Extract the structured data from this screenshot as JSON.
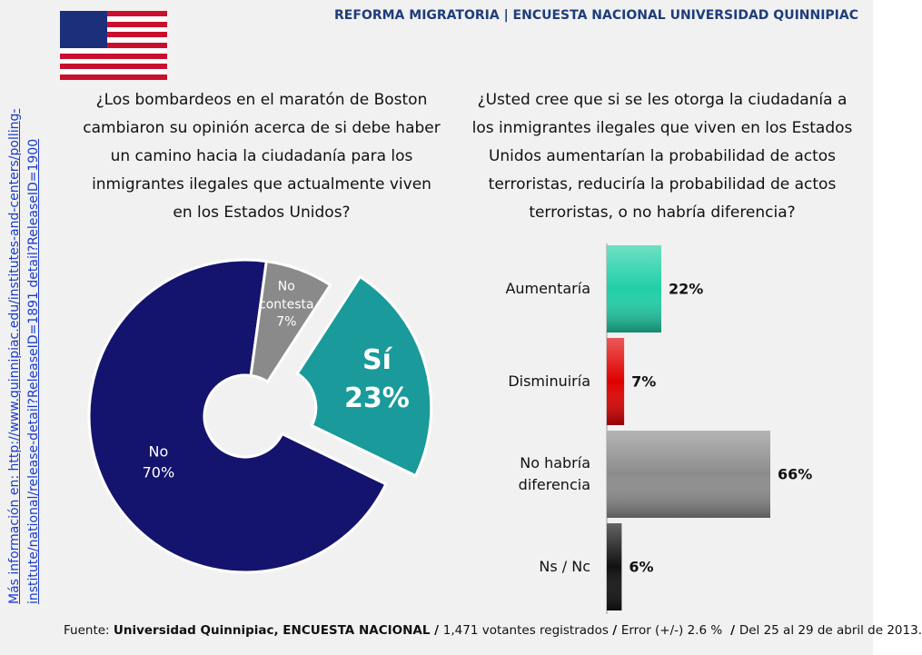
{
  "header": {
    "title": "REFORMA MIGRATORIA | ENCUESTA NACIONAL UNIVERSIDAD QUINNIPIAC"
  },
  "side_note": {
    "lines": [
      "Más información en: http://www.quinnipiac.edu/institutes-and-centers/polling-",
      "institute/national/release-detail?ReleaseID=1891 detail?ReleaseID=1900"
    ]
  },
  "chart_data": [
    {
      "type": "pie",
      "title": "¿Los bombardeos en el maratón de Boston cambiaron su opinión acerca de si debe haber un camino hacia la ciudadanía para los inmigrantes ilegales que actualmente viven en los Estados Unidos?",
      "categories": [
        "Sí",
        "No",
        "No contesta"
      ],
      "values": [
        23,
        70,
        7
      ],
      "value_labels": [
        "23%",
        "70%",
        "7%"
      ],
      "colors": [
        "#1a9a9a",
        "#14146e",
        "#8a8a8a"
      ],
      "exploded": [
        true,
        false,
        false
      ]
    },
    {
      "type": "hbar",
      "title": "¿Usted cree que si se les otorga la ciudadanía a los inmigrantes ilegales que viven en los Estados Unidos aumentarían la probabilidad de actos terroristas, reduciría la probabilidad de actos terroristas, o no habría diferencia?",
      "categories": [
        "Aumentaría",
        "Disminuiría",
        "No habría diferencia",
        "Ns / Nc"
      ],
      "values": [
        22,
        7,
        66,
        6
      ],
      "value_labels": [
        "22%",
        "7%",
        "66%",
        "6%"
      ],
      "colors": [
        "#1fcfa6",
        "#e00000",
        "#8c8c8c",
        "#111111"
      ]
    }
  ],
  "footer": {
    "parts": [
      {
        "text": "Fuente: ",
        "bold": false
      },
      {
        "text": "Universidad Quinnipiac, ENCUESTA NACIONAL / ",
        "bold": true
      },
      {
        "text": "1,471 votantes registrados ",
        "bold": false
      },
      {
        "text": "/ ",
        "bold": true
      },
      {
        "text": "Error (+/-) 2.6 % ",
        "bold": false
      },
      {
        "text": " / ",
        "bold": true
      },
      {
        "text": "Del 25 al 29 de abril de 2013.",
        "bold": false
      }
    ]
  }
}
